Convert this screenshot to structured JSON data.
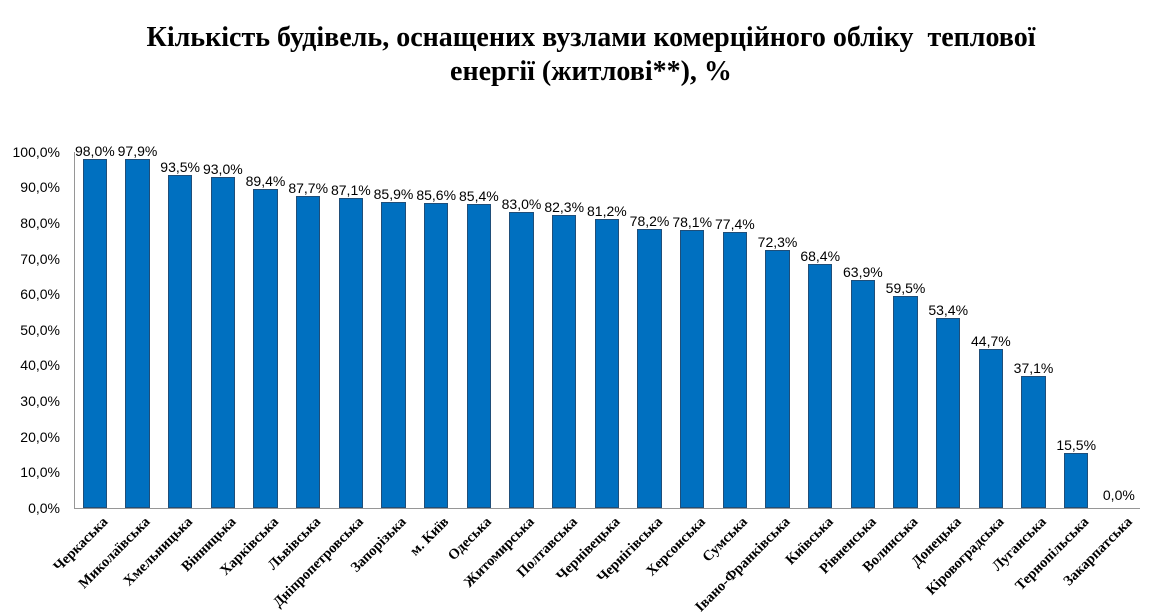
{
  "chart_data": {
    "type": "bar",
    "title": "Кількість будівель, оснащених вузлами комерційного обліку  теплової енергії (житлові**), %",
    "title_lines": [
      "Кількість будівель, оснащених вузлами комерційного обліку  теплової",
      "енергії (житлові**), %"
    ],
    "categories": [
      "Черкаська",
      "Миколаївська",
      "Хмельницька",
      "Вінницька",
      "Харківська",
      "Львівська",
      "Дніпропетровська",
      "Запорізька",
      "м. Київ",
      "Одеська",
      "Житомирська",
      "Полтавська",
      "Чернівецька",
      "Чернігівська",
      "Херсонська",
      "Сумська",
      "Івано-Франківська",
      "Київська",
      "Рівненська",
      "Волинська",
      "Донецька",
      "Кіровоградська",
      "Луганська",
      "Тернопільська",
      "Закарпатська"
    ],
    "values": [
      98.0,
      97.9,
      93.5,
      93.0,
      89.4,
      87.7,
      87.1,
      85.9,
      85.6,
      85.4,
      83.0,
      82.3,
      81.2,
      78.2,
      78.1,
      77.4,
      72.3,
      68.4,
      63.9,
      59.5,
      53.4,
      44.7,
      37.1,
      15.5,
      0.0
    ],
    "data_labels": [
      "98,0%",
      "97,9%",
      "93,5%",
      "93,0%",
      "89,4%",
      "87,7%",
      "87,1%",
      "85,9%",
      "85,6%",
      "85,4%",
      "83,0%",
      "82,3%",
      "81,2%",
      "78,2%",
      "78,1%",
      "77,4%",
      "72,3%",
      "68,4%",
      "63,9%",
      "59,5%",
      "53,4%",
      "44,7%",
      "37,1%",
      "15,5%",
      "0,0%"
    ],
    "ytick_labels": [
      "0,0%",
      "10,0%",
      "20,0%",
      "30,0%",
      "40,0%",
      "50,0%",
      "60,0%",
      "70,0%",
      "80,0%",
      "90,0%",
      "100,0%"
    ],
    "ylim": [
      0,
      100
    ],
    "ytick_step": 10,
    "xlabel": "",
    "ylabel": "",
    "grid": false,
    "legend": false,
    "bar_color": "#0070C0",
    "bar_border_color": "#1F4E79",
    "axis_color": "#969696",
    "text_color": "#000000"
  }
}
